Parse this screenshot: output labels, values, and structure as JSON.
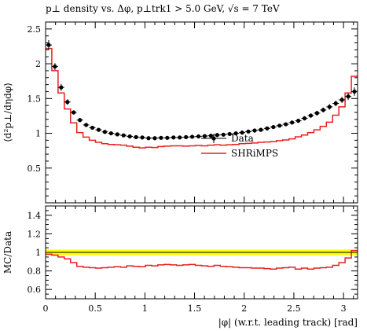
{
  "title": "p⊥ density vs. Δφ, p⊥trk1 > 5.0 GeV, √s = 7 TeV",
  "chart_data": [
    {
      "type": "line",
      "panel": "main",
      "ylabel": "⟨d²p⊥/dηdφ⟩",
      "xlim": [
        0,
        3.14159
      ],
      "ylim": [
        0.0,
        2.6
      ],
      "yticks": [
        "0.5",
        "1",
        "1.5",
        "2",
        "2.5"
      ],
      "grid": false,
      "legend_position": "right-middle",
      "x": [
        0.0314,
        0.0942,
        0.1571,
        0.2199,
        0.2827,
        0.3456,
        0.4084,
        0.4712,
        0.5341,
        0.5969,
        0.6597,
        0.7226,
        0.7854,
        0.8482,
        0.9111,
        0.9739,
        1.0367,
        1.0996,
        1.1624,
        1.2252,
        1.2881,
        1.3509,
        1.4137,
        1.4765,
        1.5394,
        1.6022,
        1.665,
        1.7279,
        1.7907,
        1.8535,
        1.9164,
        1.9792,
        2.042,
        2.1049,
        2.1677,
        2.2305,
        2.2934,
        2.3562,
        2.419,
        2.4819,
        2.5447,
        2.6075,
        2.6704,
        2.7332,
        2.796,
        2.8589,
        2.9217,
        2.9845,
        3.0474,
        3.1102
      ],
      "series": [
        {
          "name": "Data",
          "style": "markers",
          "color": "#000000",
          "values": [
            2.27,
            1.96,
            1.66,
            1.45,
            1.3,
            1.19,
            1.12,
            1.08,
            1.05,
            1.02,
            1.0,
            0.985,
            0.97,
            0.955,
            0.945,
            0.94,
            0.93,
            0.93,
            0.935,
            0.935,
            0.94,
            0.94,
            0.945,
            0.95,
            0.955,
            0.96,
            0.965,
            0.975,
            0.98,
            0.99,
            1.0,
            1.01,
            1.025,
            1.04,
            1.05,
            1.07,
            1.09,
            1.11,
            1.13,
            1.155,
            1.18,
            1.215,
            1.255,
            1.29,
            1.335,
            1.38,
            1.43,
            1.48,
            1.53,
            1.6
          ],
          "errors": [
            0.07,
            0.05,
            0.05,
            0.04,
            0.03,
            0.03,
            0.03,
            0.025,
            0.025,
            0.02,
            0.02,
            0.02,
            0.02,
            0.02,
            0.02,
            0.02,
            0.02,
            0.02,
            0.02,
            0.02,
            0.02,
            0.02,
            0.02,
            0.02,
            0.02,
            0.02,
            0.02,
            0.02,
            0.02,
            0.02,
            0.02,
            0.02,
            0.02,
            0.02,
            0.02,
            0.02,
            0.025,
            0.025,
            0.025,
            0.03,
            0.03,
            0.03,
            0.03,
            0.035,
            0.035,
            0.04,
            0.04,
            0.045,
            0.05,
            0.06
          ]
        },
        {
          "name": "SHRiMPS",
          "style": "step",
          "color": "#e8201e",
          "values": [
            2.22,
            1.9,
            1.58,
            1.35,
            1.15,
            1.01,
            0.945,
            0.9,
            0.87,
            0.85,
            0.84,
            0.835,
            0.83,
            0.815,
            0.8,
            0.79,
            0.8,
            0.795,
            0.81,
            0.815,
            0.82,
            0.82,
            0.815,
            0.82,
            0.825,
            0.82,
            0.83,
            0.835,
            0.83,
            0.835,
            0.84,
            0.85,
            0.855,
            0.86,
            0.87,
            0.875,
            0.88,
            0.895,
            0.905,
            0.92,
            0.95,
            0.975,
            1.01,
            1.05,
            1.1,
            1.16,
            1.26,
            1.38,
            1.58,
            1.82
          ]
        }
      ]
    },
    {
      "type": "line",
      "panel": "ratio",
      "xlabel": "|φ| (w.r.t. leading track) [rad]",
      "ylabel": "MC/Data",
      "xlim": [
        0,
        3.14159
      ],
      "ylim": [
        0.5,
        1.5
      ],
      "xticks": [
        "0",
        "0.5",
        "1",
        "1.5",
        "2",
        "2.5",
        "3"
      ],
      "yticks": [
        "0.6",
        "0.8",
        "1",
        "1.2",
        "1.4"
      ],
      "band": {
        "center": 1.0,
        "low": 0.97,
        "high": 1.03,
        "color": "#ffff00",
        "line_color": "#000000"
      },
      "series": [
        {
          "name": "SHRiMPS",
          "style": "step",
          "color": "#e8201e",
          "values": [
            0.98,
            0.97,
            0.95,
            0.93,
            0.89,
            0.85,
            0.84,
            0.835,
            0.83,
            0.835,
            0.84,
            0.845,
            0.84,
            0.855,
            0.85,
            0.845,
            0.86,
            0.855,
            0.865,
            0.87,
            0.865,
            0.86,
            0.865,
            0.87,
            0.86,
            0.855,
            0.85,
            0.86,
            0.85,
            0.845,
            0.84,
            0.835,
            0.835,
            0.83,
            0.83,
            0.825,
            0.82,
            0.83,
            0.835,
            0.84,
            0.82,
            0.83,
            0.82,
            0.83,
            0.835,
            0.84,
            0.86,
            0.89,
            0.94,
            1.02
          ]
        }
      ]
    }
  ]
}
